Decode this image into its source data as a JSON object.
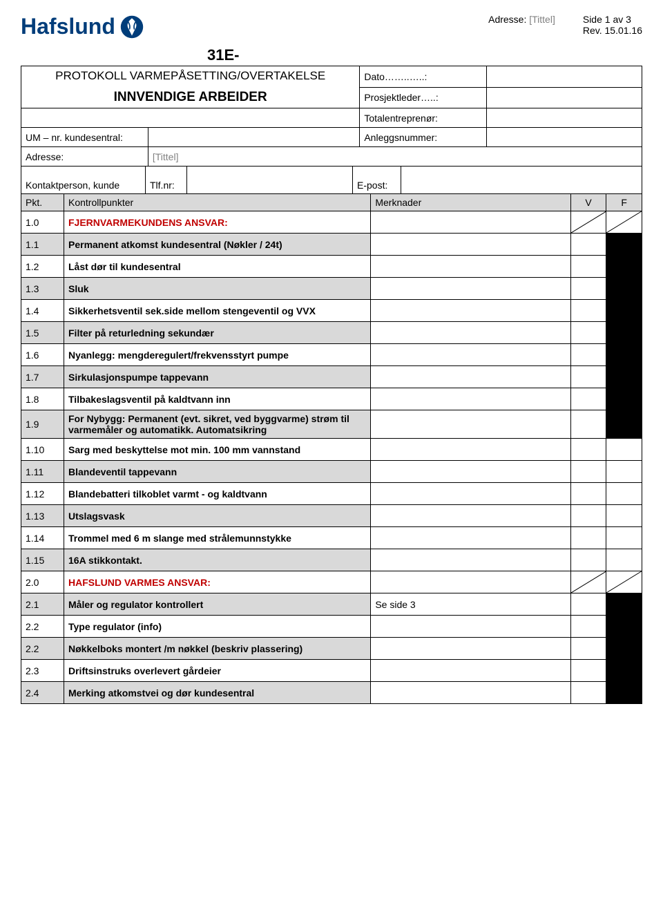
{
  "logo_text": "Hafslund",
  "page_info": {
    "adresse_label": "Adresse:",
    "adresse_value": "[Tittel]",
    "side": "Side 1 av 3",
    "rev": "Rev. 15.01.16"
  },
  "form_number": "31E-",
  "form_title": "PROTOKOLL VARMEPÅSETTING/OVERTAKELSE",
  "form_subtitle": "INNVENDIGE ARBEIDER",
  "header_fields": {
    "dato": "Dato……..…..:",
    "prosjektleder": "Prosjektleder…..:",
    "totalentreprenor": "Totalentreprenør:",
    "um_nr": "UM – nr. kundesentral:",
    "anleggsnummer": "Anleggsnummer:",
    "adresse_label": "Adresse:",
    "adresse_value": "[Tittel]",
    "kontaktperson": "Kontaktperson, kunde",
    "tlfnr": "Tlf.nr:",
    "epost": "E-post:"
  },
  "columns": {
    "pkt": "Pkt.",
    "kontrollpunkter": "Kontrollpunkter",
    "merknader": "Merknader",
    "v": "V",
    "f": "F"
  },
  "rows": [
    {
      "pkt": "1.0",
      "text": "FJERNVARMEKUNDENS ANSVAR:",
      "section": true,
      "gray": false,
      "merk": "",
      "diag": true
    },
    {
      "pkt": "1.1",
      "text": "Permanent atkomst kundesentral (Nøkler / 24t)",
      "gray": true,
      "black_vf": true
    },
    {
      "pkt": "1.2",
      "text": "Låst dør til kundesentral",
      "gray": false,
      "black_vf": true
    },
    {
      "pkt": "1.3",
      "text": "Sluk",
      "gray": true,
      "black_vf": true
    },
    {
      "pkt": "1.4",
      "text": "Sikkerhetsventil sek.side mellom stengeventil og VVX",
      "gray": false,
      "black_vf": true
    },
    {
      "pkt": "1.5",
      "text": "Filter på returledning sekundær",
      "gray": true,
      "black_vf": true
    },
    {
      "pkt": "1.6",
      "text": "Nyanlegg: mengderegulert/frekvensstyrt pumpe",
      "gray": false,
      "black_vf": true
    },
    {
      "pkt": "1.7",
      "text": "Sirkulasjonspumpe tappevann",
      "gray": true,
      "black_vf": true
    },
    {
      "pkt": "1.8",
      "text": "Tilbakeslagsventil på kaldtvann inn",
      "gray": false,
      "black_vf": true
    },
    {
      "pkt": "1.9",
      "text": "For Nybygg: Permanent (evt. sikret, ved byggvarme) strøm til varmemåler og automatikk. Automatsikring",
      "gray": true,
      "black_vf": true
    },
    {
      "pkt": "1.10",
      "text": "Sarg med beskyttelse mot min. 100 mm vannstand",
      "gray": false,
      "black_vf": false
    },
    {
      "pkt": "1.11",
      "text": "Blandeventil tappevann",
      "gray": true,
      "black_vf": false
    },
    {
      "pkt": "1.12",
      "text": "Blandebatteri tilkoblet varmt - og kaldtvann",
      "gray": false,
      "black_vf": false
    },
    {
      "pkt": "1.13",
      "text": "Utslagsvask",
      "gray": true,
      "black_vf": false
    },
    {
      "pkt": "1.14",
      "text": "Trommel med 6 m slange med strålemunnstykke",
      "gray": false,
      "black_vf": false
    },
    {
      "pkt": "1.15",
      "text": "16A stikkontakt.",
      "gray": true,
      "black_vf": false
    },
    {
      "pkt": "2.0",
      "text": "HAFSLUND VARMES ANSVAR:",
      "section": true,
      "gray": false,
      "merk": "",
      "diag": true
    },
    {
      "pkt": "2.1",
      "text": "Måler og regulator kontrollert",
      "gray": true,
      "merk": "Se side 3",
      "black_vf": true
    },
    {
      "pkt": "2.2",
      "text": "Type regulator (info)",
      "gray": false,
      "black_vf": true
    },
    {
      "pkt": "2.2",
      "text": "Nøkkelboks montert /m nøkkel (beskriv plassering)",
      "gray": true,
      "black_vf": true
    },
    {
      "pkt": "2.3",
      "text": "Driftsinstruks overlevert gårdeier",
      "gray": false,
      "black_vf": true
    },
    {
      "pkt": "2.4",
      "text": "Merking atkomstvei og dør kundesentral",
      "gray": true,
      "black_vf": true
    }
  ],
  "colors": {
    "logo_blue": "#003d7a",
    "gray_bg": "#d9d9d9",
    "section_red": "#c00000",
    "placeholder_gray": "#808080"
  }
}
